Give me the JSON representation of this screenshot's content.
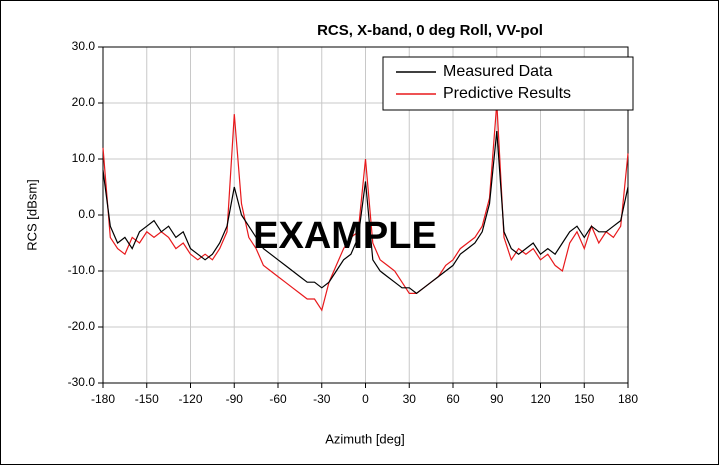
{
  "chart_data": {
    "type": "line",
    "title": "RCS, X-band, 0 deg Roll, VV-pol",
    "x_label": "Azimuth [deg]",
    "y_label": "RCS [dBsm]",
    "annotation": "EXAMPLE",
    "x": [
      -180,
      -175,
      -170,
      -165,
      -160,
      -155,
      -150,
      -145,
      -140,
      -135,
      -130,
      -125,
      -120,
      -115,
      -110,
      -105,
      -100,
      -95,
      -90,
      -85,
      -80,
      -75,
      -70,
      -65,
      -60,
      -55,
      -50,
      -45,
      -40,
      -35,
      -30,
      -25,
      -20,
      -15,
      -10,
      -5,
      0,
      5,
      10,
      15,
      20,
      25,
      30,
      35,
      40,
      45,
      50,
      55,
      60,
      65,
      70,
      75,
      80,
      85,
      90,
      95,
      100,
      105,
      110,
      115,
      120,
      125,
      130,
      135,
      140,
      145,
      150,
      155,
      160,
      165,
      170,
      175,
      180
    ],
    "series": [
      {
        "name": "Measured Data",
        "color": "#000000",
        "values": [
          8,
          -2,
          -5,
          -4,
          -6,
          -3,
          -2,
          -1,
          -3,
          -2,
          -4,
          -3,
          -6,
          -7,
          -8,
          -7,
          -5,
          -2,
          5,
          0,
          -2,
          -4,
          -6,
          -7,
          -8,
          -9,
          -10,
          -11,
          -12,
          -12,
          -13,
          -12,
          -10,
          -8,
          -7,
          -4,
          6,
          -8,
          -10,
          -11,
          -12,
          -13,
          -13,
          -14,
          -13,
          -12,
          -11,
          -10,
          -9,
          -7,
          -6,
          -5,
          -3,
          2,
          15,
          -3,
          -6,
          -7,
          -6,
          -5,
          -7,
          -6,
          -7,
          -5,
          -3,
          -2,
          -4,
          -2,
          -3,
          -3,
          -2,
          -1,
          5
        ]
      },
      {
        "name": "Predictive Results",
        "color": "#e8191c",
        "values": [
          12,
          -4,
          -6,
          -7,
          -4,
          -5,
          -3,
          -4,
          -3,
          -4,
          -6,
          -5,
          -7,
          -8,
          -7,
          -8,
          -6,
          -3,
          18,
          2,
          -4,
          -6,
          -9,
          -10,
          -11,
          -12,
          -13,
          -14,
          -15,
          -15,
          -17,
          -12,
          -9,
          -6,
          -4,
          -3,
          10,
          -5,
          -8,
          -9,
          -10,
          -12,
          -14,
          -14,
          -13,
          -12,
          -11,
          -9,
          -8,
          -6,
          -5,
          -4,
          -2,
          3,
          20,
          -4,
          -8,
          -6,
          -7,
          -6,
          -8,
          -7,
          -9,
          -10,
          -5,
          -3,
          -6,
          -2,
          -5,
          -3,
          -4,
          -2,
          11
        ]
      }
    ],
    "xlim": [
      -180,
      180
    ],
    "xticks": [
      -180,
      -150,
      -120,
      -90,
      -60,
      -30,
      0,
      30,
      60,
      90,
      120,
      150,
      180
    ],
    "ylim": [
      -30,
      30
    ],
    "yticks": [
      {
        "value": -30,
        "label": "-30.0"
      },
      {
        "value": -20,
        "label": "-20.0"
      },
      {
        "value": -10,
        "label": "-10.0"
      },
      {
        "value": 0,
        "label": "0.0"
      },
      {
        "value": 10,
        "label": "10.0"
      },
      {
        "value": 20,
        "label": "20.0"
      },
      {
        "value": 30,
        "label": "30.0"
      }
    ],
    "grid": true,
    "legend": "upper right"
  }
}
